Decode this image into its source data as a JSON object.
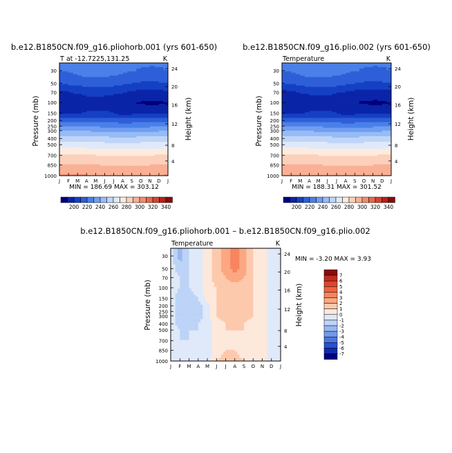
{
  "panels": [
    {
      "title": "b.e12.B1850CN.f09_g16.pliohorb.001 (yrs 601-650)",
      "subtitle_left": "T at -12.7225,131.25",
      "subtitle_right": "K",
      "minmax": "MIN = 186.69  MAX = 303.12"
    },
    {
      "title": "b.e12.B1850CN.f09_g16.plio.002 (yrs 601-650)",
      "subtitle_left": "Temperature",
      "subtitle_right": "K",
      "minmax": "MIN = 188.31  MAX = 301.52"
    },
    {
      "title": "b.e12.B1850CN.f09_g16.pliohorb.001 – b.e12.B1850CN.f09_g16.plio.002",
      "subtitle_left": "Temperature",
      "subtitle_right": "K",
      "minmax": "MIN =  -3.20  MAX =   3.93"
    }
  ],
  "axis": {
    "ylabel_left": "Pressure (mb)",
    "ylabel_right": "Height (km)",
    "pressure_ticks": [
      "30",
      "50",
      "70",
      "100",
      "150",
      "200",
      "250",
      "300",
      "400",
      "500",
      "700",
      "850",
      "1000"
    ],
    "height_ticks": [
      "24",
      "20",
      "16",
      "12",
      "8",
      "4"
    ],
    "month_ticks": [
      "J",
      "F",
      "M",
      "A",
      "M",
      "J",
      "J",
      "A",
      "S",
      "O",
      "N",
      "D",
      "J"
    ]
  },
  "colorbars": {
    "absolute": {
      "labels": [
        "200",
        "220",
        "240",
        "260",
        "280",
        "300",
        "320",
        "340"
      ],
      "colors": [
        "#00007f",
        "#0b24a8",
        "#1440c4",
        "#2e5fd8",
        "#4a80e8",
        "#6f9ef2",
        "#97bbf6",
        "#bfd5f8",
        "#dfe9f9",
        "#fdebdf",
        "#fcd0ba",
        "#f9b094",
        "#f28c6e",
        "#e8684d",
        "#d1452f",
        "#b2241a",
        "#8a0a0a"
      ]
    },
    "anomaly": {
      "labels": [
        "7",
        "6",
        "5",
        "4",
        "3",
        "2",
        "1",
        "0",
        "-1",
        "-2",
        "-3",
        "-4",
        "-5",
        "-6",
        "-7"
      ],
      "colors": [
        "#8a0a0a",
        "#c12a1e",
        "#e0442b",
        "#f0623f",
        "#f7855f",
        "#fba882",
        "#fdc9ad",
        "#fde8dc",
        "#dfe9f9",
        "#bdd3f7",
        "#98b8f3",
        "#7299ec",
        "#4c77e0",
        "#2a50cf",
        "#0f2cb0",
        "#00007f"
      ]
    }
  },
  "chart_data": [
    {
      "type": "heatmap",
      "title": "b.e12.B1850CN.f09_g16.pliohorb.001 (yrs 601-650)",
      "variable": "T at -12.7225,131.25",
      "units": "K",
      "xlabel": "",
      "ylabel": "Pressure (mb)",
      "y2label": "Height (km)",
      "x": [
        "J",
        "F",
        "M",
        "A",
        "M",
        "J",
        "J",
        "A",
        "S",
        "O",
        "N",
        "D",
        "J"
      ],
      "y_pressure_mb": [
        30,
        50,
        70,
        100,
        150,
        200,
        250,
        300,
        400,
        500,
        700,
        850,
        1000
      ],
      "approx_temperature_by_level_K": [
        222,
        212,
        200,
        192,
        198,
        216,
        228,
        238,
        254,
        264,
        280,
        290,
        300
      ],
      "min": 186.69,
      "max": 303.12,
      "contour_levels": [
        200,
        220,
        240,
        260,
        280,
        300,
        320,
        340
      ]
    },
    {
      "type": "heatmap",
      "title": "b.e12.B1850CN.f09_g16.plio.002 (yrs 601-650)",
      "variable": "Temperature",
      "units": "K",
      "xlabel": "",
      "ylabel": "Pressure (mb)",
      "y2label": "Height (km)",
      "x": [
        "J",
        "F",
        "M",
        "A",
        "M",
        "J",
        "J",
        "A",
        "S",
        "O",
        "N",
        "D",
        "J"
      ],
      "y_pressure_mb": [
        30,
        50,
        70,
        100,
        150,
        200,
        250,
        300,
        400,
        500,
        700,
        850,
        1000
      ],
      "approx_temperature_by_level_K": [
        222,
        212,
        199,
        192,
        198,
        216,
        228,
        238,
        254,
        264,
        280,
        290,
        299
      ],
      "min": 188.31,
      "max": 301.52,
      "contour_levels": [
        200,
        220,
        240,
        260,
        280,
        300,
        320,
        340
      ]
    },
    {
      "type": "heatmap",
      "title": "b.e12.B1850CN.f09_g16.pliohorb.001 – b.e12.B1850CN.f09_g16.plio.002",
      "variable": "Temperature",
      "units": "K",
      "xlabel": "",
      "ylabel": "Pressure (mb)",
      "y2label": "Height (km)",
      "x": [
        "J",
        "F",
        "M",
        "A",
        "M",
        "J",
        "J",
        "A",
        "S",
        "O",
        "N",
        "D",
        "J"
      ],
      "y_pressure_mb": [
        30,
        50,
        70,
        100,
        150,
        200,
        250,
        300,
        400,
        500,
        700,
        850,
        1000
      ],
      "approx_difference_K": [
        [
          -0.5,
          -2.5,
          -1.0,
          -0.5,
          0.5,
          1.5,
          2.5,
          3.5,
          2.5,
          1.0,
          0.5,
          -0.5,
          -0.5
        ],
        [
          -0.5,
          -1.5,
          -1.0,
          -0.5,
          0.5,
          1.5,
          2.5,
          3.5,
          2.5,
          1.0,
          0.5,
          -0.5,
          -0.5
        ],
        [
          -0.5,
          -1.0,
          -1.0,
          -0.5,
          0.5,
          1.5,
          2.0,
          2.5,
          2.0,
          1.0,
          0.5,
          -0.5,
          -0.5
        ],
        [
          -0.5,
          -1.0,
          -1.0,
          -0.5,
          0.5,
          1.0,
          1.5,
          1.5,
          1.5,
          1.0,
          0.5,
          -0.5,
          -0.5
        ],
        [
          -0.5,
          -1.5,
          -1.5,
          -1.0,
          0.5,
          1.0,
          1.5,
          1.5,
          1.5,
          1.0,
          0.5,
          -0.5,
          -0.5
        ],
        [
          -0.5,
          -1.5,
          -2.0,
          -1.5,
          -0.5,
          1.0,
          1.5,
          2.0,
          2.0,
          1.0,
          0.5,
          -0.5,
          -0.5
        ],
        [
          -0.5,
          -1.5,
          -2.0,
          -1.5,
          -0.5,
          1.0,
          1.5,
          2.0,
          2.0,
          1.0,
          0.5,
          -0.5,
          -0.5
        ],
        [
          -0.5,
          -1.5,
          -2.0,
          -1.5,
          -0.5,
          1.0,
          1.5,
          2.0,
          1.5,
          1.0,
          0.5,
          -0.5,
          -0.5
        ],
        [
          -0.5,
          -1.5,
          -1.5,
          -1.0,
          -0.5,
          0.5,
          1.0,
          1.5,
          1.0,
          0.5,
          0.5,
          -0.5,
          -0.5
        ],
        [
          -0.5,
          -1.0,
          -1.0,
          -1.0,
          -0.5,
          0.5,
          1.0,
          1.0,
          1.0,
          0.5,
          0.5,
          -0.5,
          -0.5
        ],
        [
          -0.5,
          -1.0,
          -1.0,
          -0.5,
          -0.5,
          0.5,
          0.5,
          0.5,
          0.5,
          0.5,
          0.5,
          -0.5,
          -0.5
        ],
        [
          -0.5,
          -0.5,
          -0.5,
          -0.5,
          -0.5,
          0.5,
          1.0,
          1.0,
          0.5,
          0.5,
          0.5,
          -0.5,
          -0.5
        ],
        [
          -0.5,
          -0.5,
          -0.5,
          -0.5,
          -0.5,
          1.0,
          1.5,
          1.5,
          1.0,
          0.5,
          0.5,
          -0.5,
          -0.5
        ]
      ],
      "min": -3.2,
      "max": 3.93,
      "contour_levels": [
        -7,
        -6,
        -5,
        -4,
        -3,
        -2,
        -1,
        0,
        1,
        2,
        3,
        4,
        5,
        6,
        7
      ]
    }
  ]
}
